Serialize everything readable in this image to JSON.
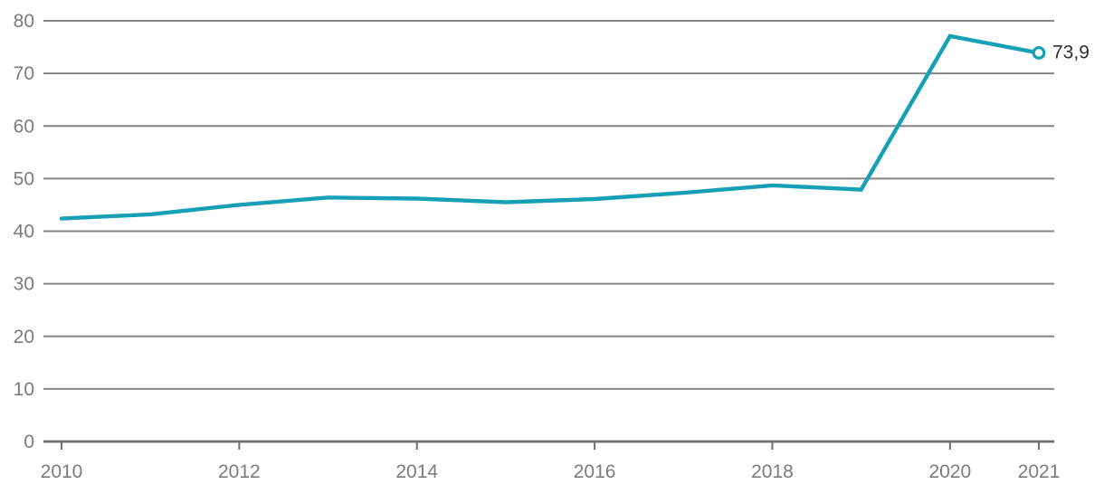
{
  "chart_data": {
    "type": "line",
    "title": "",
    "xlabel": "",
    "ylabel": "",
    "x": [
      2010,
      2011,
      2012,
      2013,
      2014,
      2015,
      2016,
      2017,
      2018,
      2019,
      2020,
      2021
    ],
    "series": [
      {
        "name": "series-1",
        "values": [
          42.4,
          43.2,
          45.0,
          46.4,
          46.2,
          45.5,
          46.1,
          47.3,
          48.7,
          47.9,
          77.1,
          73.9
        ]
      }
    ],
    "end_label": "73,9",
    "ylim": [
      0,
      80
    ],
    "y_ticks": [
      0,
      10,
      20,
      30,
      40,
      50,
      60,
      70,
      80
    ],
    "y_tick_labels": [
      "0",
      "10",
      "20",
      "30",
      "40",
      "50",
      "60",
      "70",
      "80"
    ],
    "x_labeled_years": [
      2010,
      2012,
      2014,
      2016,
      2018,
      2020,
      2021
    ],
    "x_tick_labels": [
      "2010",
      "2012",
      "2014",
      "2016",
      "2018",
      "2020",
      "2021"
    ],
    "grid": "horizontal-only",
    "legend": "none",
    "last_point_marker": "open-circle",
    "colors": {
      "line": "#16A0B6",
      "marker_fill": "#FFFFFF",
      "grid": "#868686",
      "axis": "#707070",
      "tick_label": "#7B7B7B",
      "end_label_text": "#2F2F2F",
      "background": "#FFFFFF"
    }
  }
}
